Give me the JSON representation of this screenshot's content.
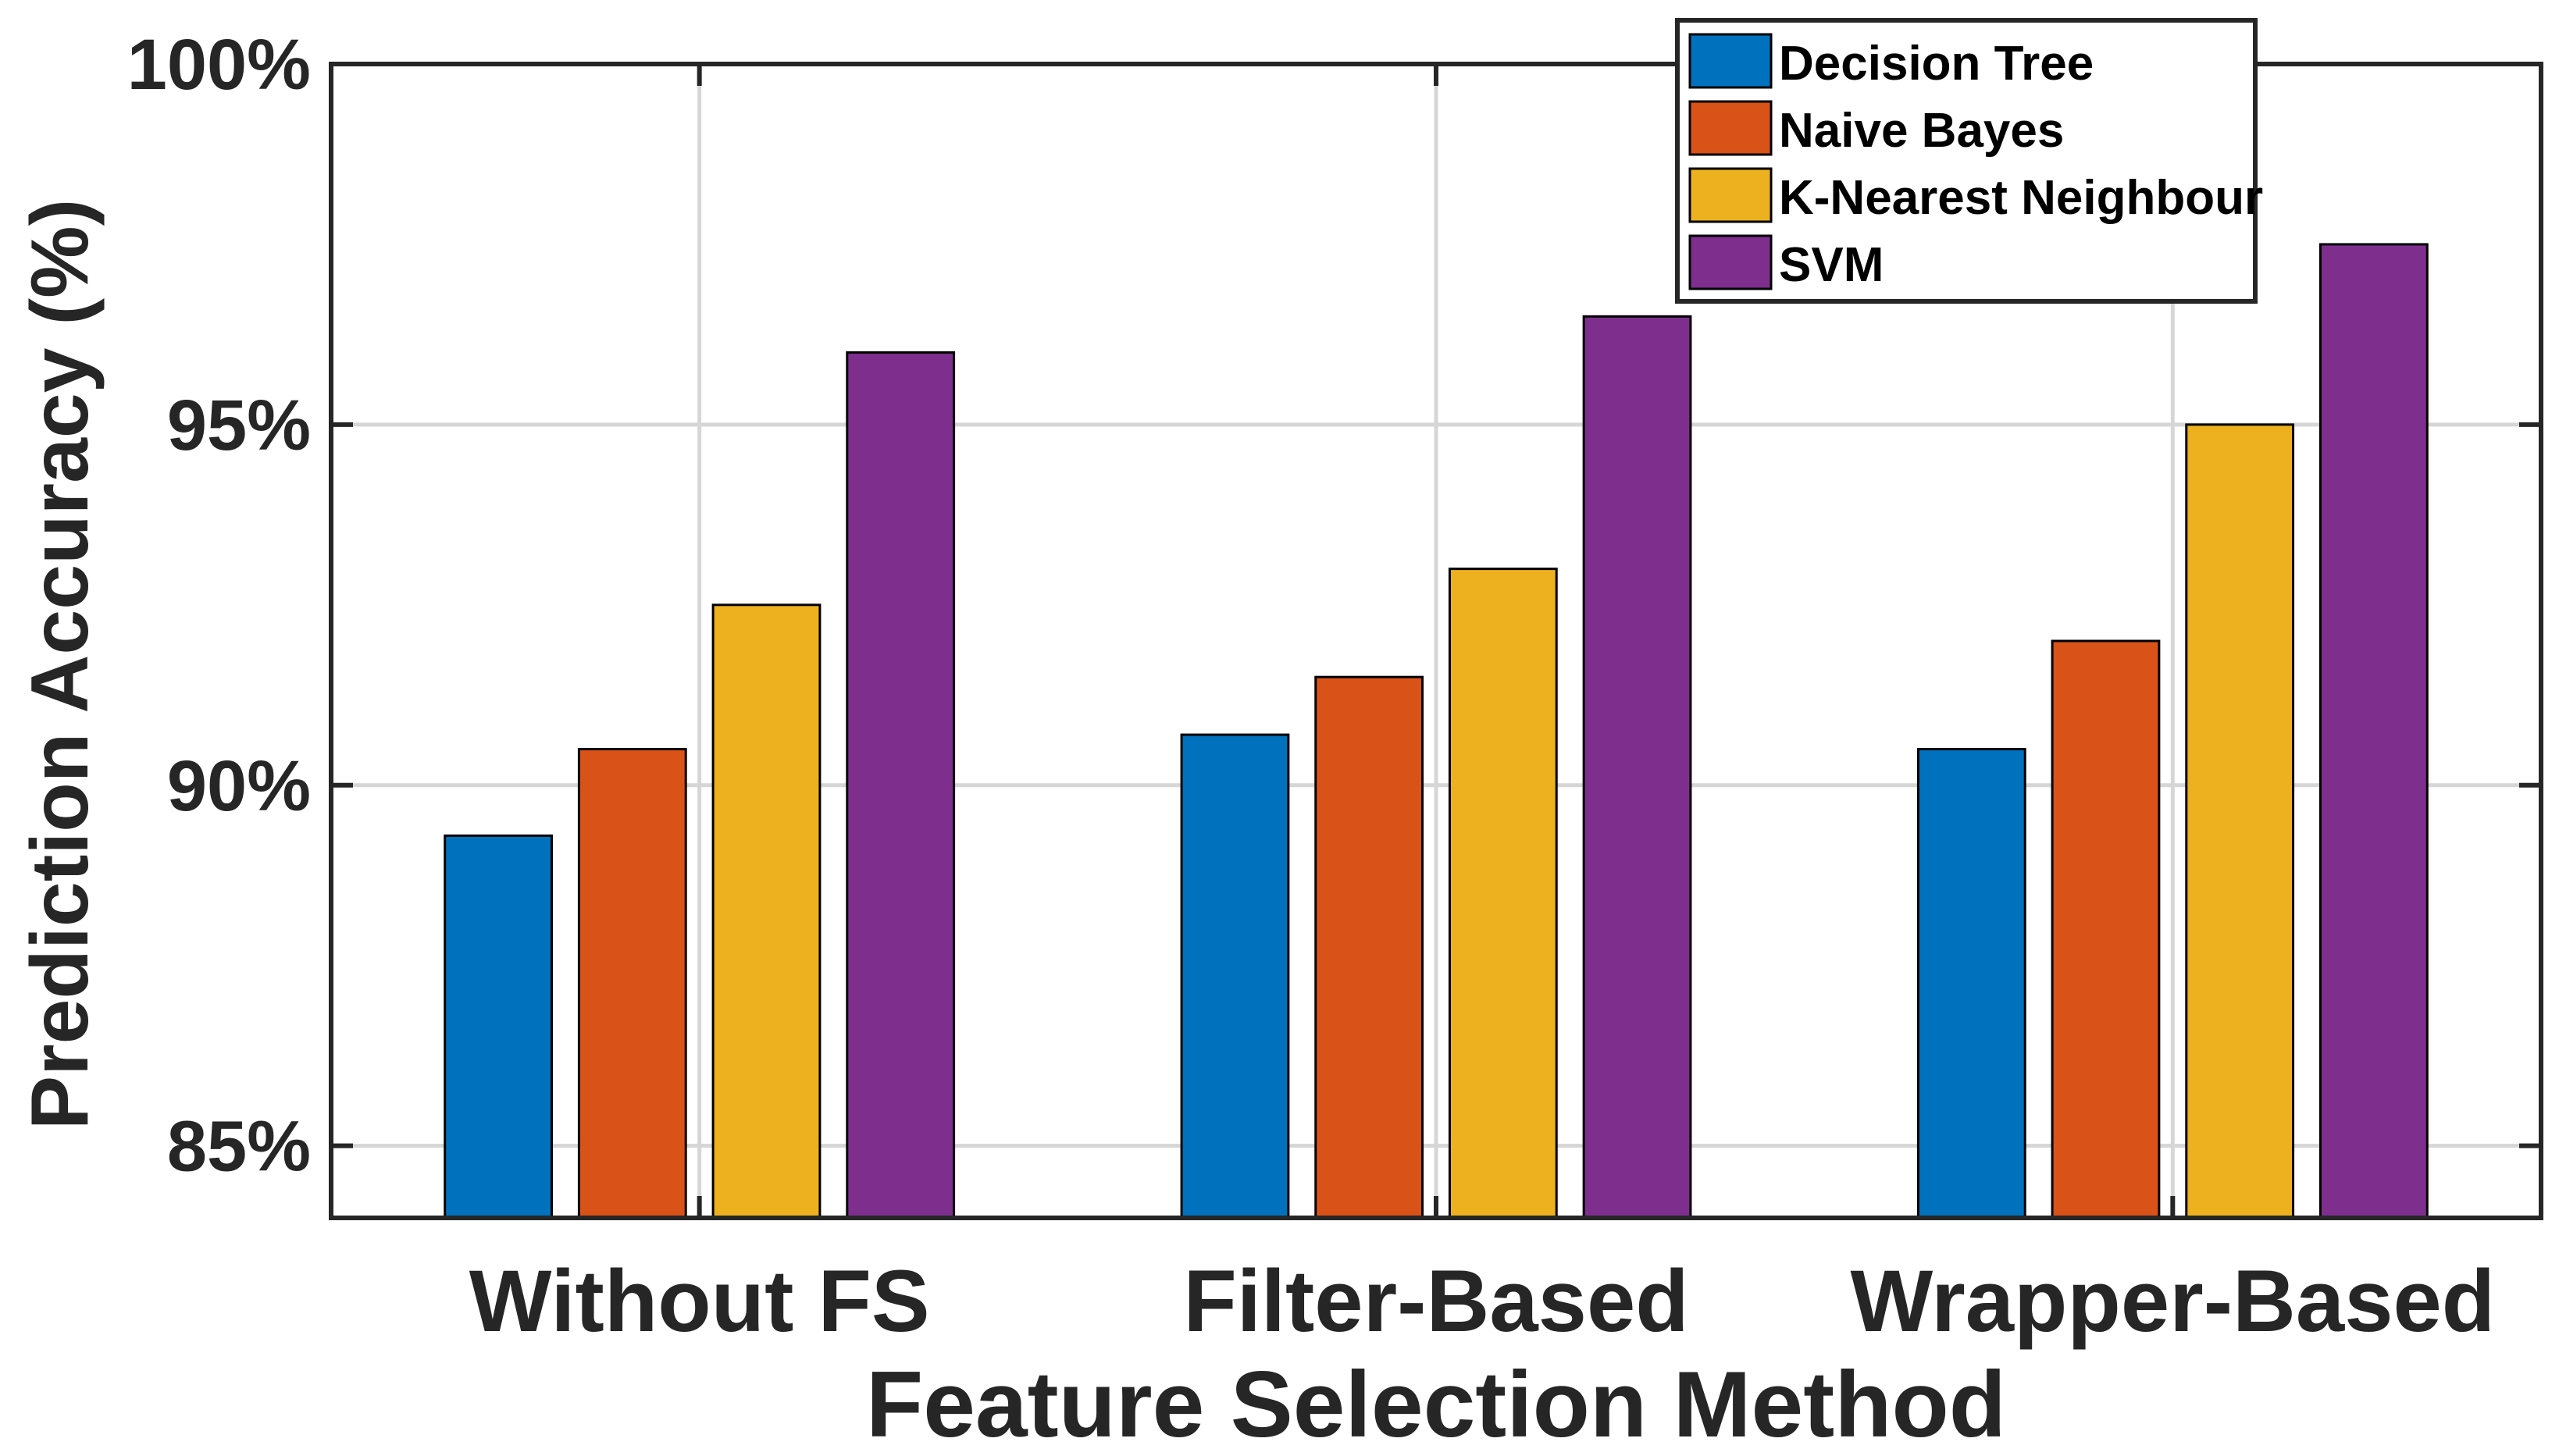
{
  "chart_data": {
    "type": "bar",
    "title": "",
    "xlabel": "Feature Selection Method",
    "ylabel": "Prediction Accuracy (%)",
    "categories": [
      "Without FS",
      "Filter-Based",
      "Wrapper-Based"
    ],
    "series": [
      {
        "name": "Decision Tree",
        "color": "#0072BD",
        "values": [
          89.3,
          90.7,
          90.5
        ]
      },
      {
        "name": "Naive Bayes",
        "color": "#D95319",
        "values": [
          90.5,
          91.5,
          92.0
        ]
      },
      {
        "name": "K-Nearest Neighbour",
        "color": "#EDB120",
        "values": [
          92.5,
          93.0,
          95.0
        ]
      },
      {
        "name": "SVM",
        "color": "#7E2F8E",
        "values": [
          96.0,
          96.5,
          97.5
        ]
      }
    ],
    "ylim": [
      84,
      100
    ],
    "yticks": [
      85,
      90,
      95,
      100
    ],
    "ytick_labels": [
      "85%",
      "90%",
      "95%",
      "100%"
    ],
    "grid": true,
    "legend_position": "top-right"
  }
}
